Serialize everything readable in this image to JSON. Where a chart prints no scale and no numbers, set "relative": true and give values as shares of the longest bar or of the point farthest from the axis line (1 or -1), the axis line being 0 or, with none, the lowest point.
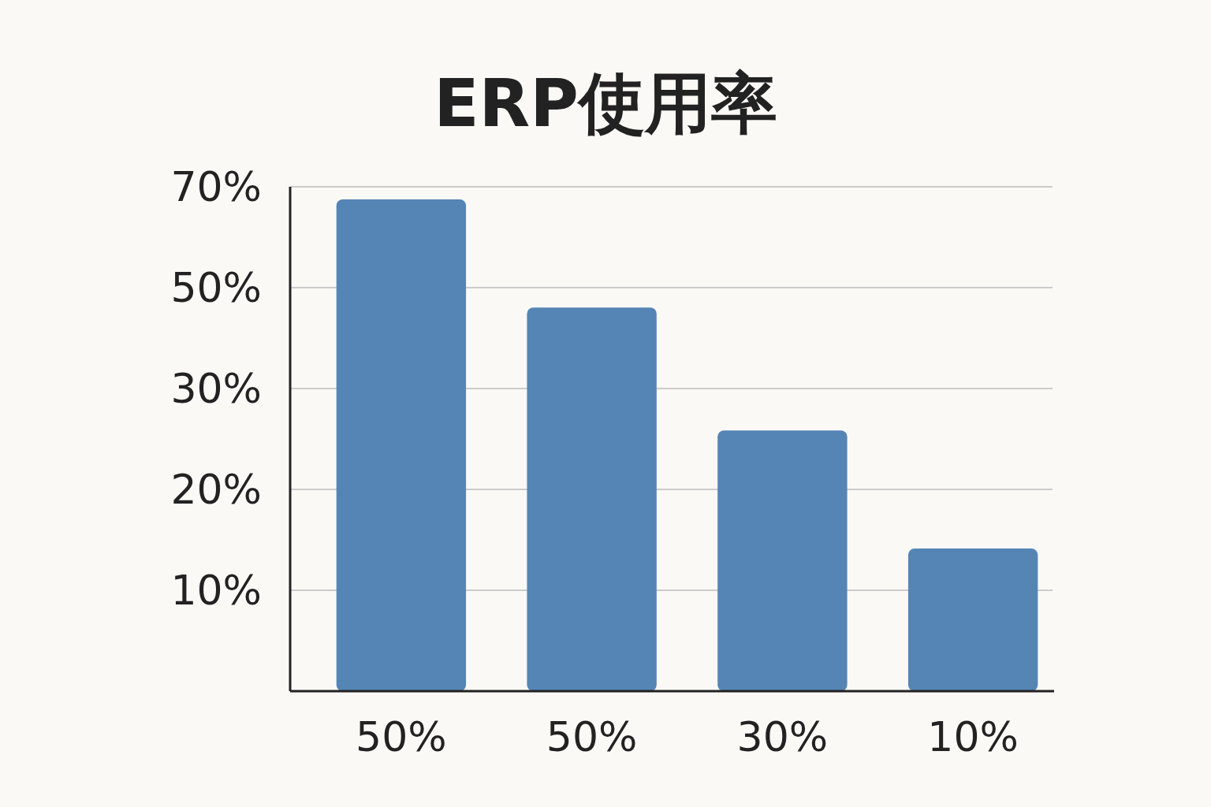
{
  "chart_data": {
    "type": "bar",
    "title": "ERP使用率",
    "categories": [
      "50%",
      "50%",
      "30%",
      "10%"
    ],
    "values": [
      1,
      0.78,
      0.53,
      0.29
    ],
    "relative": true,
    "color": "#5585b5",
    "annotations": [
      "70%",
      "50%",
      "30%",
      "20%",
      "10%"
    ],
    "grid": "y"
  }
}
